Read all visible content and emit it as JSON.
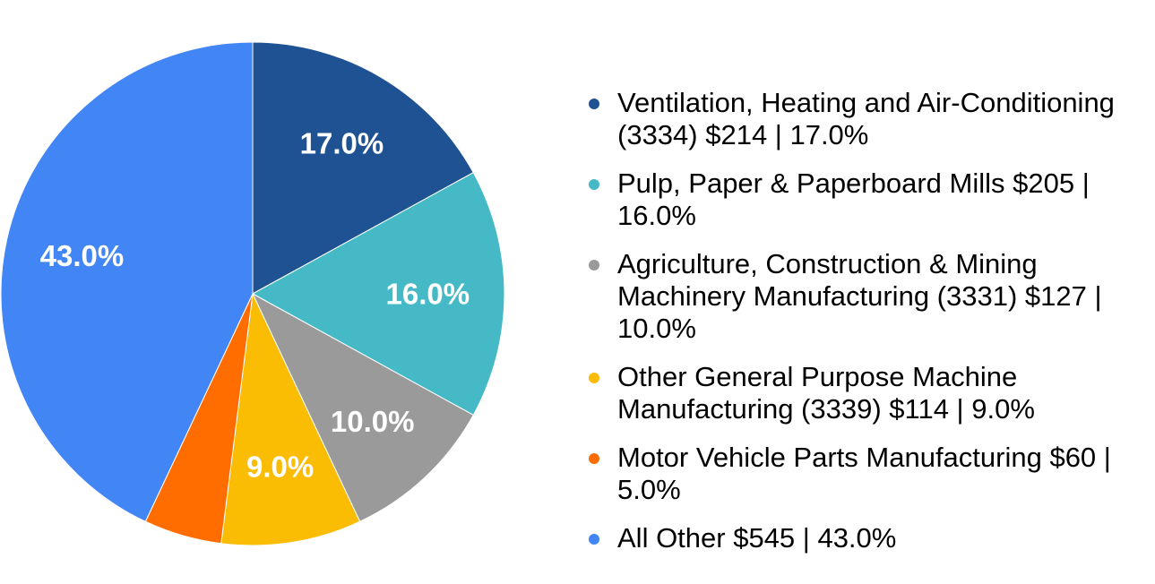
{
  "background_color": "#FFFFFF",
  "chart_data": {
    "type": "pie",
    "title": "",
    "start_angle_deg": 0,
    "direction": "clockwise",
    "legend_position": "right",
    "data_labels_style": "percent inside, white bold",
    "slices": [
      {
        "name": "Ventilation, Heating and Air-Conditioning (3334)",
        "dollars": "$214",
        "percent": 17.0,
        "data_label": "17.0%",
        "show_data_label": true,
        "color": "#1F5293",
        "legend_text": "Ventilation, Heating and Air-Conditioning (3334) $214 | 17.0%"
      },
      {
        "name": "Pulp, Paper & Paperboard Mills",
        "dollars": "$205",
        "percent": 16.0,
        "data_label": "16.0%",
        "show_data_label": true,
        "color": "#45BAC6",
        "legend_text": "Pulp, Paper & Paperboard Mills $205 | 16.0%"
      },
      {
        "name": "Agriculture, Construction & Mining Machinery Manufacturing (3331)",
        "dollars": "$127",
        "percent": 10.0,
        "data_label": "10.0%",
        "show_data_label": true,
        "color": "#9A9A9A",
        "legend_text": "Agriculture, Construction & Mining Machinery Manufacturing (3331) $127 | 10.0%"
      },
      {
        "name": "Other General Purpose Machine Manufacturing (3339)",
        "dollars": "$114",
        "percent": 9.0,
        "data_label": "9.0%",
        "show_data_label": true,
        "color": "#FBBC04",
        "legend_text": "Other General Purpose Machine Manufacturing (3339) $114 | 9.0%"
      },
      {
        "name": "Motor Vehicle Parts Manufacturing",
        "dollars": "$60",
        "percent": 5.0,
        "data_label": "5.0%",
        "show_data_label": false,
        "color": "#FF6D00",
        "legend_text": "Motor Vehicle Parts Manufacturing $60 | 5.0%"
      },
      {
        "name": "All Other",
        "dollars": "$545",
        "percent": 43.0,
        "data_label": "43.0%",
        "show_data_label": true,
        "color": "#4285F4",
        "legend_text": "All Other $545 | 43.0%"
      }
    ]
  }
}
